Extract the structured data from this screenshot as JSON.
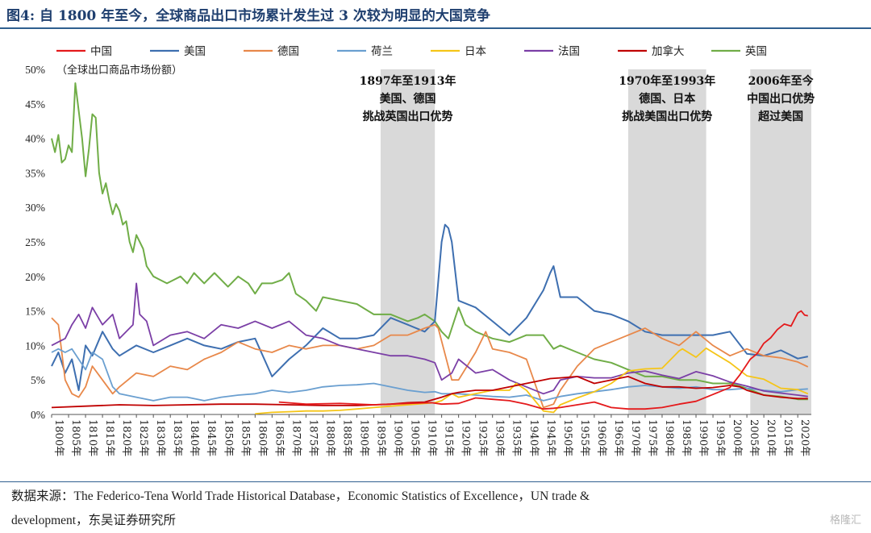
{
  "title": "图4: 自 1800 年至今，全球商品出口市场累计发生过 3 次较为明显的大国竞争",
  "source_line1": "数据来源：The Federico-Tena World Trade Historical Database，Economic Statistics of Excellence，UN trade &",
  "source_line2": "development，东吴证券研究所",
  "watermark": "格隆汇",
  "chart_data": {
    "type": "line",
    "unit_note": "（全球出口商品市场份额）",
    "xlim": [
      1800,
      2024
    ],
    "ylim": [
      0,
      50
    ],
    "yticks": [
      0,
      5,
      10,
      15,
      20,
      25,
      30,
      35,
      40,
      45,
      50
    ],
    "ytick_labels": [
      "0%",
      "5%",
      "10%",
      "15%",
      "20%",
      "25%",
      "30%",
      "35%",
      "40%",
      "45%",
      "50%"
    ],
    "xticks": [
      1800,
      1805,
      1810,
      1815,
      1820,
      1825,
      1830,
      1835,
      1840,
      1845,
      1850,
      1855,
      1860,
      1865,
      1870,
      1875,
      1880,
      1885,
      1890,
      1895,
      1900,
      1905,
      1910,
      1915,
      1920,
      1925,
      1930,
      1935,
      1940,
      1945,
      1950,
      1955,
      1960,
      1965,
      1970,
      1975,
      1980,
      1985,
      1990,
      1995,
      2000,
      2005,
      2010,
      2015,
      2020
    ],
    "xtick_suffix": "年",
    "grid": false,
    "legend_position": "top",
    "colors": {
      "china": "#e41a1c",
      "usa": "#3e6fb0",
      "germany": "#e8884a",
      "netherlands": "#6a9fd0",
      "japan": "#f5c518",
      "france": "#7b3fa6",
      "canada": "#c00000",
      "uk": "#70ad47",
      "shade": "#d9d9d9"
    },
    "shaded_regions": [
      {
        "from": 1897,
        "to": 1913,
        "lines": [
          "1897年至1913年",
          "美国、德国",
          "挑战英国出口优势"
        ]
      },
      {
        "from": 1970,
        "to": 1993,
        "lines": [
          "1970年至1993年",
          "德国、日本",
          "挑战美国出口优势"
        ]
      },
      {
        "from": 2006,
        "to": 2024,
        "lines": [
          "2006年至今",
          "中国出口优势",
          "超过美国"
        ]
      }
    ],
    "series": [
      {
        "key": "china",
        "name": "中国",
        "x": [
          1867,
          1875,
          1885,
          1895,
          1905,
          1912,
          1915,
          1920,
          1925,
          1930,
          1935,
          1940,
          1945,
          1948,
          1950,
          1955,
          1960,
          1965,
          1970,
          1975,
          1980,
          1985,
          1990,
          1995,
          2000,
          2003,
          2006,
          2008,
          2010,
          2012,
          2014,
          2016,
          2018,
          2020,
          2021,
          2022,
          2023
        ],
        "y": [
          1.8,
          1.5,
          1.6,
          1.4,
          1.6,
          1.7,
          1.5,
          1.6,
          2.4,
          2.2,
          2.0,
          1.5,
          0.8,
          0.9,
          1.0,
          1.4,
          1.8,
          1.0,
          0.8,
          0.8,
          1.0,
          1.5,
          1.9,
          2.9,
          3.9,
          5.8,
          8.0,
          8.8,
          10.3,
          11.1,
          12.3,
          13.1,
          12.8,
          14.7,
          15.0,
          14.4,
          14.3
        ]
      },
      {
        "key": "usa",
        "name": "美国",
        "x": [
          1800,
          1802,
          1804,
          1806,
          1808,
          1810,
          1812,
          1815,
          1818,
          1820,
          1825,
          1830,
          1835,
          1840,
          1845,
          1850,
          1855,
          1860,
          1865,
          1870,
          1875,
          1880,
          1885,
          1890,
          1895,
          1900,
          1905,
          1910,
          1913,
          1915,
          1916,
          1917,
          1918,
          1920,
          1925,
          1930,
          1935,
          1940,
          1945,
          1947,
          1948,
          1950,
          1955,
          1960,
          1965,
          1970,
          1975,
          1980,
          1985,
          1990,
          1995,
          2000,
          2005,
          2010,
          2015,
          2020,
          2023
        ],
        "y": [
          7.0,
          9.0,
          6.0,
          8.0,
          3.5,
          10.0,
          8.5,
          12.0,
          9.5,
          8.5,
          10.0,
          9.0,
          10.0,
          11.0,
          10.0,
          9.5,
          10.5,
          11.0,
          5.5,
          8.0,
          10.0,
          12.5,
          11.0,
          11.0,
          11.5,
          14.0,
          13.0,
          12.0,
          13.5,
          25.0,
          27.5,
          27.0,
          25.0,
          16.5,
          15.5,
          13.5,
          11.5,
          14.0,
          18.0,
          20.5,
          21.5,
          17.0,
          17.0,
          15.0,
          14.5,
          13.5,
          12.0,
          11.5,
          11.5,
          11.5,
          11.5,
          12.0,
          8.8,
          8.5,
          9.3,
          8.1,
          8.4
        ]
      },
      {
        "key": "germany",
        "name": "德国",
        "x": [
          1800,
          1802,
          1804,
          1806,
          1808,
          1810,
          1812,
          1815,
          1818,
          1820,
          1825,
          1830,
          1835,
          1840,
          1845,
          1850,
          1855,
          1860,
          1865,
          1870,
          1875,
          1880,
          1885,
          1890,
          1895,
          1900,
          1905,
          1910,
          1913,
          1914,
          1918,
          1920,
          1925,
          1928,
          1930,
          1935,
          1940,
          1945,
          1948,
          1950,
          1955,
          1960,
          1965,
          1970,
          1975,
          1980,
          1985,
          1990,
          1995,
          2000,
          2005,
          2010,
          2015,
          2020,
          2023
        ],
        "y": [
          14.0,
          13.0,
          5.0,
          3.0,
          2.5,
          4.0,
          7.0,
          5.0,
          3.0,
          4.0,
          6.0,
          5.5,
          7.0,
          6.5,
          8.0,
          9.0,
          10.5,
          9.5,
          9.0,
          10.0,
          9.5,
          10.0,
          10.0,
          9.5,
          10.0,
          11.5,
          11.5,
          12.5,
          13.0,
          12.5,
          5.0,
          5.0,
          9.0,
          12.0,
          9.5,
          9.0,
          8.0,
          1.0,
          1.5,
          3.5,
          7.0,
          9.5,
          10.5,
          11.5,
          12.5,
          11.0,
          10.0,
          12.0,
          10.0,
          8.5,
          9.5,
          8.5,
          8.2,
          7.6,
          6.9
        ]
      },
      {
        "key": "netherlands",
        "name": "荷兰",
        "x": [
          1800,
          1802,
          1804,
          1806,
          1808,
          1810,
          1812,
          1815,
          1818,
          1820,
          1825,
          1830,
          1835,
          1840,
          1845,
          1850,
          1855,
          1860,
          1865,
          1870,
          1875,
          1880,
          1885,
          1890,
          1895,
          1900,
          1905,
          1910,
          1913,
          1915,
          1920,
          1925,
          1930,
          1935,
          1940,
          1945,
          1950,
          1955,
          1960,
          1965,
          1970,
          1975,
          1980,
          1985,
          1990,
          1995,
          2000,
          2005,
          2010,
          2015,
          2020,
          2023
        ],
        "y": [
          9.0,
          9.5,
          9.0,
          9.5,
          8.0,
          6.5,
          9.0,
          8.0,
          4.0,
          3.0,
          2.5,
          2.0,
          2.5,
          2.5,
          2.0,
          2.5,
          2.8,
          3.0,
          3.5,
          3.2,
          3.5,
          4.0,
          4.2,
          4.3,
          4.5,
          4.0,
          3.5,
          3.2,
          3.3,
          3.0,
          3.0,
          2.8,
          2.6,
          2.5,
          2.8,
          2.0,
          2.6,
          3.0,
          3.3,
          3.6,
          4.0,
          4.2,
          4.0,
          3.8,
          4.0,
          3.6,
          3.6,
          3.8,
          3.5,
          3.3,
          3.6,
          3.7
        ]
      },
      {
        "key": "japan",
        "name": "日本",
        "x": [
          1860,
          1865,
          1870,
          1875,
          1880,
          1885,
          1890,
          1895,
          1900,
          1905,
          1910,
          1913,
          1915,
          1918,
          1920,
          1925,
          1930,
          1935,
          1937,
          1940,
          1945,
          1948,
          1950,
          1955,
          1960,
          1965,
          1970,
          1975,
          1980,
          1985,
          1986,
          1990,
          1993,
          1995,
          2000,
          2005,
          2010,
          2015,
          2020,
          2023
        ],
        "y": [
          0.1,
          0.3,
          0.4,
          0.5,
          0.5,
          0.6,
          0.8,
          1.0,
          1.2,
          1.4,
          1.6,
          1.7,
          2.0,
          3.0,
          2.5,
          3.0,
          3.5,
          3.5,
          4.5,
          3.5,
          0.5,
          0.3,
          1.4,
          2.4,
          3.3,
          4.5,
          6.3,
          6.6,
          6.7,
          9.2,
          9.5,
          8.3,
          9.6,
          9.0,
          7.5,
          5.6,
          5.1,
          3.8,
          3.6,
          3.0
        ]
      },
      {
        "key": "france",
        "name": "法国",
        "x": [
          1800,
          1802,
          1804,
          1806,
          1808,
          1810,
          1812,
          1815,
          1818,
          1820,
          1824,
          1825,
          1826,
          1828,
          1830,
          1835,
          1840,
          1845,
          1850,
          1855,
          1860,
          1865,
          1870,
          1875,
          1880,
          1885,
          1890,
          1895,
          1900,
          1905,
          1910,
          1913,
          1915,
          1918,
          1920,
          1925,
          1930,
          1935,
          1940,
          1945,
          1948,
          1950,
          1955,
          1960,
          1965,
          1970,
          1975,
          1980,
          1985,
          1990,
          1995,
          2000,
          2005,
          2010,
          2015,
          2020,
          2023
        ],
        "y": [
          10.0,
          10.5,
          11.0,
          13.0,
          14.5,
          12.5,
          15.5,
          13.0,
          14.5,
          11.0,
          13.0,
          19.0,
          14.5,
          13.5,
          10.0,
          11.5,
          12.0,
          11.0,
          13.0,
          12.5,
          13.5,
          12.5,
          13.5,
          11.5,
          11.0,
          10.0,
          9.5,
          9.0,
          8.5,
          8.5,
          8.0,
          7.5,
          5.0,
          6.0,
          8.0,
          6.0,
          6.5,
          5.0,
          4.0,
          3.0,
          3.5,
          5.0,
          5.5,
          5.3,
          5.3,
          6.0,
          6.3,
          5.7,
          5.2,
          6.2,
          5.6,
          4.7,
          4.1,
          3.4,
          3.1,
          2.8,
          2.6
        ]
      },
      {
        "key": "canada",
        "name": "加拿大",
        "x": [
          1800,
          1810,
          1820,
          1830,
          1840,
          1850,
          1860,
          1870,
          1880,
          1890,
          1900,
          1905,
          1910,
          1915,
          1918,
          1920,
          1925,
          1930,
          1935,
          1940,
          1945,
          1947,
          1950,
          1955,
          1960,
          1965,
          1970,
          1975,
          1980,
          1985,
          1990,
          1995,
          2000,
          2003,
          2005,
          2010,
          2015,
          2020,
          2023
        ],
        "y": [
          1.0,
          1.2,
          1.4,
          1.3,
          1.4,
          1.5,
          1.5,
          1.4,
          1.3,
          1.3,
          1.5,
          1.7,
          1.8,
          2.5,
          3.0,
          3.2,
          3.5,
          3.5,
          4.0,
          4.5,
          5.0,
          5.2,
          5.3,
          5.5,
          4.5,
          5.0,
          5.5,
          4.5,
          4.0,
          4.0,
          3.8,
          3.9,
          4.2,
          4.0,
          3.5,
          2.8,
          2.5,
          2.3,
          2.3
        ]
      },
      {
        "key": "uk",
        "name": "英国",
        "x": [
          1800,
          1801,
          1802,
          1803,
          1804,
          1805,
          1806,
          1807,
          1808,
          1809,
          1810,
          1811,
          1812,
          1813,
          1814,
          1815,
          1816,
          1817,
          1818,
          1819,
          1820,
          1821,
          1822,
          1823,
          1824,
          1825,
          1826,
          1827,
          1828,
          1830,
          1832,
          1834,
          1836,
          1838,
          1840,
          1842,
          1845,
          1848,
          1850,
          1852,
          1855,
          1858,
          1860,
          1862,
          1865,
          1868,
          1870,
          1872,
          1875,
          1878,
          1880,
          1885,
          1890,
          1895,
          1900,
          1905,
          1908,
          1910,
          1913,
          1915,
          1917,
          1918,
          1920,
          1922,
          1925,
          1930,
          1935,
          1940,
          1945,
          1948,
          1950,
          1955,
          1960,
          1965,
          1970,
          1975,
          1980,
          1985,
          1990,
          1995,
          2000,
          2005,
          2010,
          2015,
          2020,
          2023
        ],
        "y": [
          40.0,
          38.0,
          40.5,
          36.5,
          37.0,
          39.0,
          38.0,
          48.0,
          44.0,
          40.0,
          34.5,
          38.5,
          43.5,
          43.0,
          35.0,
          32.0,
          33.5,
          31.0,
          29.0,
          30.5,
          29.5,
          27.5,
          28.0,
          25.0,
          23.5,
          26.0,
          25.0,
          24.0,
          21.5,
          20.0,
          19.5,
          19.0,
          19.5,
          20.0,
          19.0,
          20.5,
          19.0,
          20.5,
          19.5,
          18.5,
          20.0,
          19.0,
          17.5,
          19.0,
          19.0,
          19.5,
          20.5,
          17.5,
          16.5,
          15.0,
          17.0,
          16.5,
          16.0,
          14.5,
          14.5,
          13.5,
          14.0,
          14.5,
          13.5,
          12.0,
          11.0,
          12.5,
          15.5,
          13.0,
          12.0,
          11.0,
          10.5,
          11.5,
          11.5,
          9.5,
          10.0,
          9.0,
          8.0,
          7.5,
          6.5,
          5.5,
          5.5,
          5.0,
          5.0,
          4.5,
          4.5,
          3.8,
          2.8,
          2.6,
          2.2,
          2.2
        ]
      }
    ]
  }
}
